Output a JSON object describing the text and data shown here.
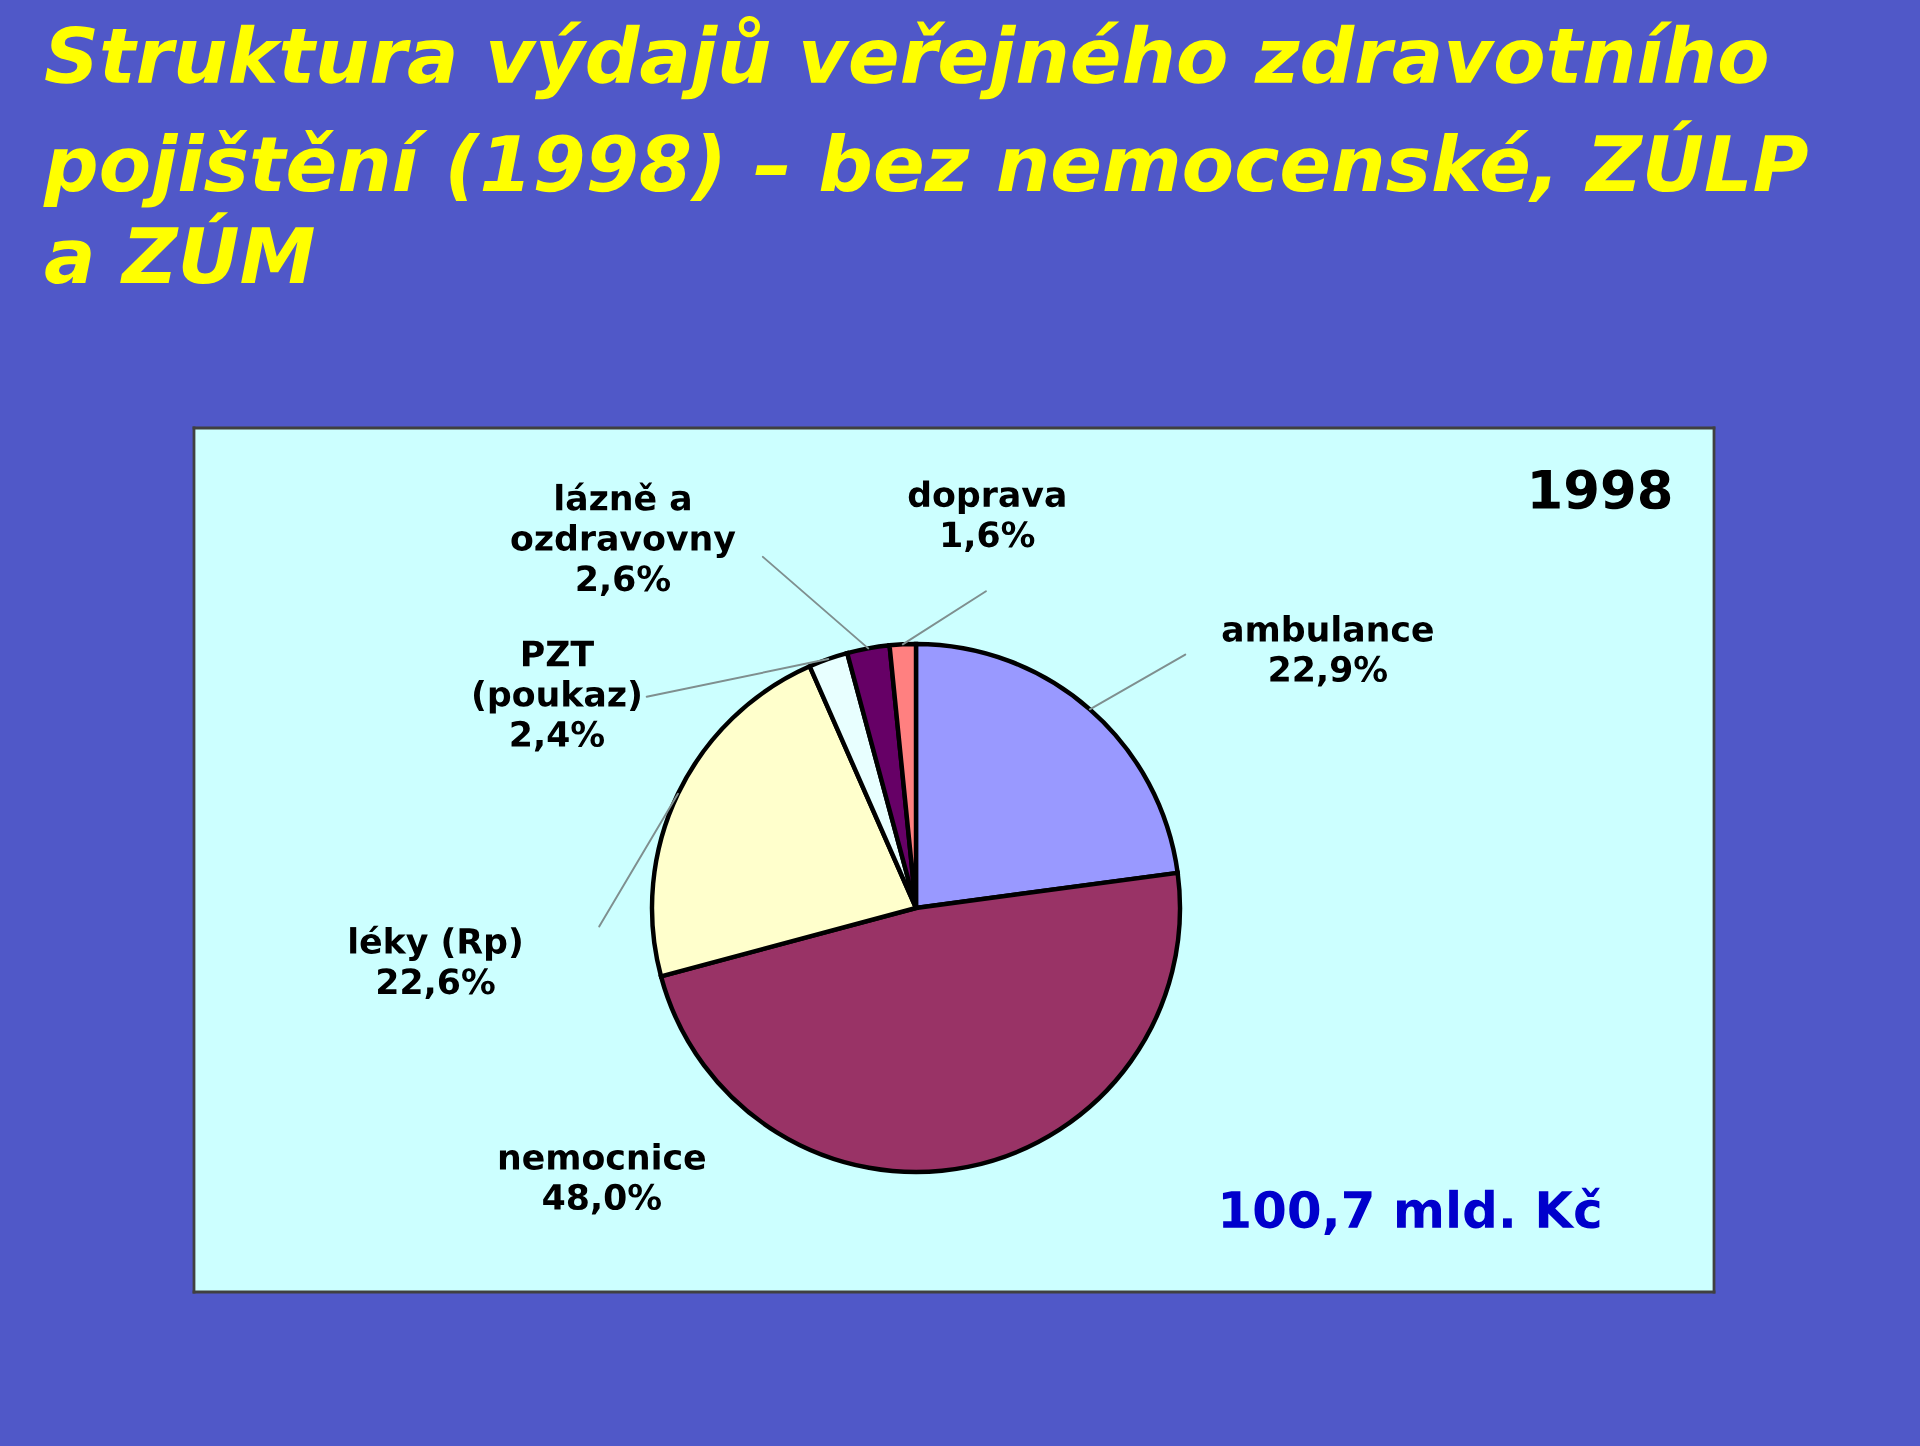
{
  "chart_data": {
    "type": "pie",
    "title": "Struktura výdajů veřejného zdravotního pojištění (1998) – bez nemocenské, ZÚLP a ZÚM",
    "categories": [
      "ambulance",
      "nemocnice",
      "léky (Rp)",
      "PZT (poukaz)",
      "lázně a ozdravovny",
      "doprava"
    ],
    "values": [
      22.9,
      48.0,
      22.6,
      2.4,
      2.6,
      1.6
    ],
    "value_labels": [
      "22,9%",
      "48,0%",
      "22,6%",
      "2,4%",
      "2,6%",
      "1,6%"
    ],
    "colors": [
      "#9999ff",
      "#993366",
      "#ffffcc",
      "#e8ffff",
      "#660066",
      "#ff8080"
    ],
    "annotations": [
      "1998",
      "100,7 mld. Kč"
    ]
  }
}
